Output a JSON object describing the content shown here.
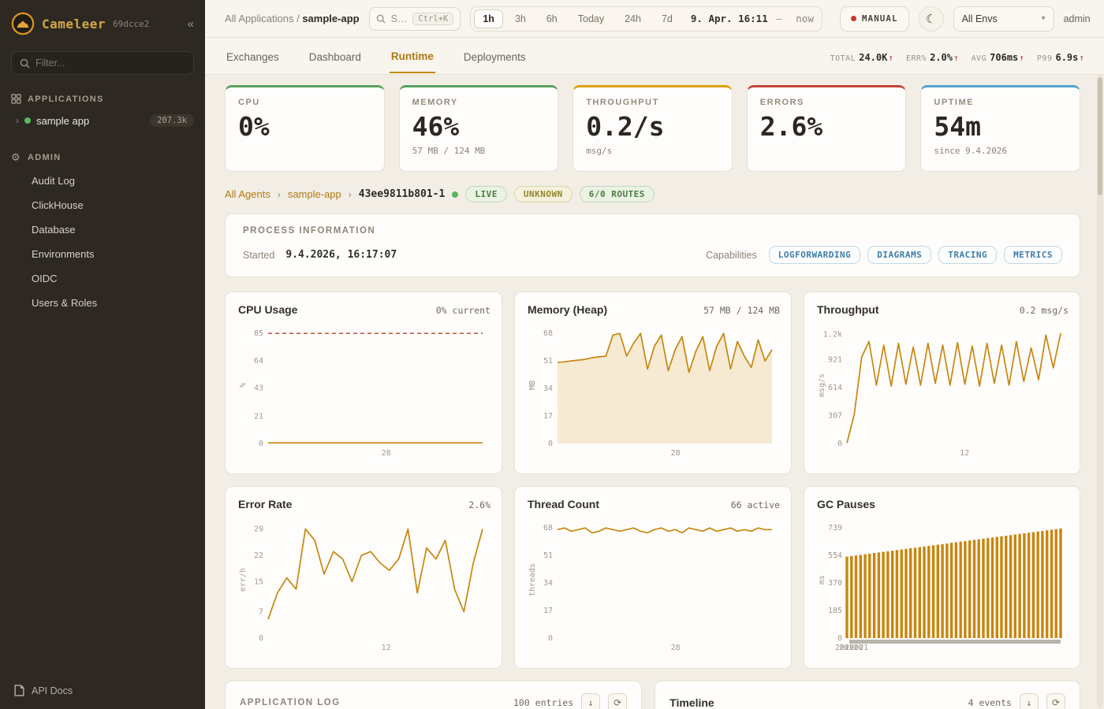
{
  "theme": {
    "accent": "#c8860d",
    "accent_fill": "#f6ead2",
    "threshold": "#c0392b"
  },
  "sidebar": {
    "app_name": "Cameleer",
    "version": "69dcce2",
    "collapse_glyph": "«",
    "filter_placeholder": "Filter...",
    "applications_label": "APPLICATIONS",
    "app_item": {
      "name": "sample app",
      "count": "207.3k"
    },
    "admin_label": "ADMIN",
    "admin_items": [
      "Audit Log",
      "ClickHouse",
      "Database",
      "Environments",
      "OIDC",
      "Users & Roles"
    ],
    "api_docs_label": "API Docs"
  },
  "topbar": {
    "breadcrumb_root": "All Applications",
    "breadcrumb_sep": "/",
    "breadcrumb_current": "sample-app",
    "search_text": "S…",
    "search_kbd": "Ctrl+K",
    "ranges": [
      "1h",
      "3h",
      "6h",
      "Today",
      "24h",
      "7d"
    ],
    "datetime": "9. Apr. 16:11",
    "datetime_dash": "—",
    "datetime_now": "now",
    "manual_label": "MANUAL",
    "moon_glyph": "☾",
    "env_select": "All Envs",
    "env_caret": "▾",
    "user": "admin"
  },
  "tabbar": {
    "tabs": [
      "Exchanges",
      "Dashboard",
      "Runtime",
      "Deployments"
    ],
    "stats": [
      {
        "label": "TOTAL",
        "value": "24.0K",
        "arrow": "↑"
      },
      {
        "label": "ERR%",
        "value": "2.0%",
        "arrow": "↑"
      },
      {
        "label": "AVG",
        "value": "706ms",
        "arrow": "↑"
      },
      {
        "label": "P99",
        "value": "6.9s",
        "arrow": "↑"
      }
    ]
  },
  "overview_cards": [
    {
      "label": "CPU",
      "value": "0%",
      "sub": ""
    },
    {
      "label": "MEMORY",
      "value": "46%",
      "sub": "57 MB / 124 MB"
    },
    {
      "label": "THROUGHPUT",
      "value": "0.2/s",
      "sub": "msg/s"
    },
    {
      "label": "ERRORS",
      "value": "2.6%",
      "sub": ""
    },
    {
      "label": "UPTIME",
      "value": "54m",
      "sub": "since 9.4.2026"
    }
  ],
  "agent": {
    "crumb_root": "All Agents",
    "crumb_app": "sample-app",
    "crumb_sep": "›",
    "id": "43ee9811b801-1",
    "badges": [
      "LIVE",
      "UNKNOWN",
      "6/0 ROUTES"
    ]
  },
  "process": {
    "title": "PROCESS INFORMATION",
    "started_label": "Started",
    "started_value": "9.4.2026, 16:17:07",
    "capabilities_label": "Capabilities",
    "capabilities": [
      "LOGFORWARDING",
      "DIAGRAMS",
      "TRACING",
      "METRICS"
    ]
  },
  "chart_data": [
    {
      "id": "cpu",
      "type": "line",
      "title": "CPU Usage",
      "value_label": "0% current",
      "ylabel": "%",
      "ymax": 90,
      "threshold": 85,
      "yticks": [
        {
          "v": 0,
          "l": "0"
        },
        {
          "v": 21,
          "l": "21"
        },
        {
          "v": 43,
          "l": "43"
        },
        {
          "v": 64,
          "l": "64"
        },
        {
          "v": 85,
          "l": "85"
        }
      ],
      "xticks": [
        {
          "pos": 0.55,
          "label": "28"
        }
      ],
      "values": [
        0.5,
        0.5,
        0.5,
        0.5,
        0.5,
        0.5,
        0.5,
        0.5,
        0.5,
        0.5,
        0.5,
        0.5,
        0.5,
        0.5,
        0.5,
        0.5,
        0.5,
        0.5,
        0.5,
        0.5,
        0.5,
        0.5,
        0.5,
        0.5,
        0.5,
        0.5,
        0.5,
        0.5,
        0.5,
        0.5,
        0.5,
        0.5
      ]
    },
    {
      "id": "memory",
      "type": "line",
      "area": true,
      "title": "Memory (Heap)",
      "value_label": "57 MB / 124 MB",
      "ylabel": "MB",
      "ymax": 72,
      "yticks": [
        {
          "v": 0,
          "l": "0"
        },
        {
          "v": 17,
          "l": "17"
        },
        {
          "v": 34,
          "l": "34"
        },
        {
          "v": 51,
          "l": "51"
        },
        {
          "v": 68,
          "l": "68"
        }
      ],
      "xticks": [
        {
          "pos": 0.55,
          "label": "28"
        }
      ],
      "values": [
        50,
        50.5,
        51,
        51.5,
        52,
        53,
        53.5,
        54,
        67,
        68,
        54,
        62,
        68,
        46,
        60,
        67,
        45,
        58,
        66,
        44,
        57,
        66,
        45,
        60,
        68,
        46,
        63,
        54,
        47,
        64,
        51,
        58
      ]
    },
    {
      "id": "throughput",
      "type": "line",
      "title": "Throughput",
      "value_label": "0.2 msg/s",
      "ylabel": "msg/s",
      "ymax": 1280,
      "yticks": [
        {
          "v": 0,
          "l": "0"
        },
        {
          "v": 307,
          "l": "307"
        },
        {
          "v": 614,
          "l": "614"
        },
        {
          "v": 921,
          "l": "921"
        },
        {
          "v": 1200,
          "l": "1.2k"
        }
      ],
      "xticks": [
        {
          "pos": 0.55,
          "label": "12"
        }
      ],
      "values": [
        5,
        320,
        950,
        1120,
        640,
        1080,
        630,
        1100,
        650,
        1060,
        640,
        1100,
        660,
        1080,
        640,
        1110,
        650,
        1070,
        630,
        1100,
        660,
        1080,
        640,
        1120,
        680,
        1050,
        700,
        1190,
        830,
        1210
      ]
    },
    {
      "id": "error",
      "type": "line",
      "title": "Error Rate",
      "value_label": "2.6%",
      "ylabel": "err/h",
      "ymax": 31,
      "yticks": [
        {
          "v": 0,
          "l": "0"
        },
        {
          "v": 7,
          "l": "7"
        },
        {
          "v": 15,
          "l": "15"
        },
        {
          "v": 22,
          "l": "22"
        },
        {
          "v": 29,
          "l": "29"
        }
      ],
      "xticks": [
        {
          "pos": 0.55,
          "label": "12"
        }
      ],
      "values": [
        5,
        12,
        16,
        13,
        29,
        26,
        17,
        23,
        21,
        15,
        22,
        23,
        20,
        18,
        21,
        29,
        12,
        24,
        21,
        26,
        13,
        7,
        20,
        29
      ]
    },
    {
      "id": "threads",
      "type": "line",
      "title": "Thread Count",
      "value_label": "66 active",
      "ylabel": "threads",
      "ymax": 72,
      "yticks": [
        {
          "v": 0,
          "l": "0"
        },
        {
          "v": 17,
          "l": "17"
        },
        {
          "v": 34,
          "l": "34"
        },
        {
          "v": 51,
          "l": "51"
        },
        {
          "v": 68,
          "l": "68"
        }
      ],
      "xticks": [
        {
          "pos": 0.55,
          "label": "28"
        }
      ],
      "values": [
        67,
        68,
        66,
        67,
        68,
        65,
        66,
        68,
        67,
        66,
        67,
        68,
        66,
        65,
        67,
        68,
        66,
        67,
        65,
        68,
        67,
        66,
        68,
        66,
        67,
        68,
        66,
        67,
        66,
        68,
        67,
        67
      ]
    },
    {
      "id": "gc",
      "type": "bar",
      "strip": true,
      "title": "GC Pauses",
      "value_label": "",
      "ylabel": "ms",
      "ymax": 780,
      "yticks": [
        {
          "v": 0,
          "l": "0"
        },
        {
          "v": 185,
          "l": "185"
        },
        {
          "v": 370,
          "l": "370"
        },
        {
          "v": 554,
          "l": "554"
        },
        {
          "v": 739,
          "l": "739"
        }
      ],
      "xticks": [
        {
          "pos": 0.0,
          "label": "20:20"
        },
        {
          "pos": 0.02,
          "label": "20:20"
        },
        {
          "pos": 0.045,
          "label": "20:21"
        }
      ],
      "values": [
        545,
        549,
        553,
        557,
        561,
        565,
        569,
        573,
        577,
        581,
        585,
        589,
        593,
        597,
        601,
        605,
        609,
        613,
        617,
        621,
        625,
        629,
        633,
        637,
        641,
        645,
        649,
        653,
        657,
        661,
        665,
        669,
        673,
        677,
        681,
        685,
        689,
        693,
        697,
        701,
        705,
        709,
        713,
        717,
        721,
        725,
        729,
        733
      ]
    }
  ],
  "footer": {
    "log_title": "APPLICATION LOG",
    "log_count": "100 entries",
    "download_glyph": "↓",
    "refresh_glyph": "⟳",
    "timeline_title": "Timeline",
    "timeline_count": "4 events"
  }
}
